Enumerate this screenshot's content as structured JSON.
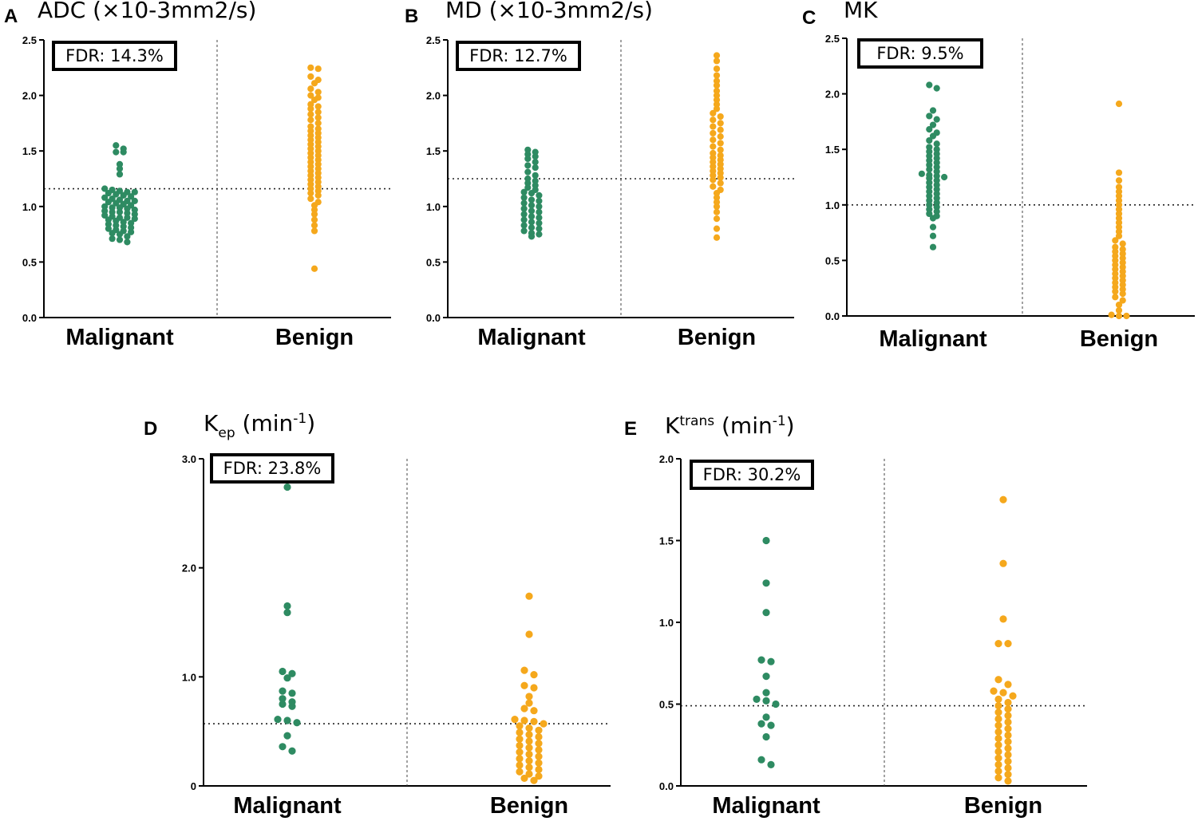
{
  "colors": {
    "malignant": "#2e8b62",
    "benign": "#f5a81c"
  },
  "chart_data": [
    {
      "type": "scatter",
      "letter": "A",
      "title": "ADC (×10-3mm2/s)",
      "fdr": "FDR: 14.3%",
      "categories": [
        "Malignant",
        "Benign"
      ],
      "ylim": [
        0,
        2.5
      ],
      "ytick_labels": [
        "0.0",
        "0.5",
        "1.0",
        "1.5",
        "2.0",
        "2.5"
      ],
      "cutoff": 1.16,
      "series": [
        {
          "name": "Malignant",
          "values": [
            1.55,
            1.52,
            1.49,
            1.49,
            1.38,
            1.34,
            1.29,
            1.16,
            1.15,
            1.14,
            1.13,
            1.13,
            1.12,
            1.11,
            1.1,
            1.09,
            1.08,
            1.07,
            1.06,
            1.05,
            1.05,
            1.04,
            1.03,
            1.02,
            1.01,
            1.0,
            0.99,
            0.99,
            0.98,
            0.97,
            0.96,
            0.95,
            0.95,
            0.94,
            0.93,
            0.92,
            0.91,
            0.9,
            0.9,
            0.89,
            0.88,
            0.87,
            0.86,
            0.85,
            0.84,
            0.83,
            0.82,
            0.81,
            0.8,
            0.79,
            0.78,
            0.77,
            0.76,
            0.75,
            0.73,
            0.71,
            0.7,
            0.68
          ]
        },
        {
          "name": "Benign",
          "values": [
            2.25,
            2.24,
            2.17,
            2.14,
            2.11,
            2.06,
            2.03,
            2.0,
            1.98,
            1.96,
            1.92,
            1.9,
            1.88,
            1.85,
            1.83,
            1.8,
            1.78,
            1.75,
            1.72,
            1.7,
            1.68,
            1.66,
            1.64,
            1.62,
            1.6,
            1.58,
            1.56,
            1.54,
            1.52,
            1.5,
            1.48,
            1.46,
            1.44,
            1.42,
            1.4,
            1.38,
            1.36,
            1.34,
            1.32,
            1.3,
            1.28,
            1.26,
            1.24,
            1.22,
            1.2,
            1.18,
            1.16,
            1.14,
            1.12,
            1.1,
            1.07,
            1.04,
            1.01,
            0.97,
            0.93,
            0.88,
            0.83,
            0.78,
            0.44
          ]
        }
      ]
    },
    {
      "type": "scatter",
      "letter": "B",
      "title": "MD (×10-3mm2/s)",
      "fdr": "FDR: 12.7%",
      "categories": [
        "Malignant",
        "Benign"
      ],
      "ylim": [
        0,
        2.5
      ],
      "ytick_labels": [
        "0.0",
        "0.5",
        "1.0",
        "1.5",
        "2.0",
        "2.5"
      ],
      "cutoff": 1.25,
      "series": [
        {
          "name": "Malignant",
          "values": [
            1.51,
            1.49,
            1.47,
            1.45,
            1.43,
            1.4,
            1.37,
            1.35,
            1.31,
            1.28,
            1.25,
            1.23,
            1.21,
            1.19,
            1.17,
            1.15,
            1.13,
            1.12,
            1.1,
            1.08,
            1.06,
            1.05,
            1.03,
            1.01,
            1.0,
            0.98,
            0.96,
            0.95,
            0.93,
            0.91,
            0.9,
            0.88,
            0.86,
            0.85,
            0.83,
            0.81,
            0.8,
            0.78,
            0.76,
            0.75,
            0.73
          ]
        },
        {
          "name": "Benign",
          "values": [
            2.36,
            2.31,
            2.24,
            2.18,
            2.13,
            2.09,
            2.04,
            2.0,
            1.96,
            1.92,
            1.88,
            1.84,
            1.81,
            1.78,
            1.75,
            1.72,
            1.69,
            1.66,
            1.63,
            1.6,
            1.57,
            1.54,
            1.51,
            1.48,
            1.46,
            1.44,
            1.42,
            1.4,
            1.38,
            1.36,
            1.34,
            1.32,
            1.3,
            1.28,
            1.26,
            1.24,
            1.21,
            1.18,
            1.15,
            1.12,
            1.08,
            1.04,
            1.0,
            0.95,
            0.89,
            0.8,
            0.72
          ]
        }
      ]
    },
    {
      "type": "scatter",
      "letter": "C",
      "title": "MK",
      "fdr": "FDR: 9.5%",
      "categories": [
        "Malignant",
        "Benign"
      ],
      "ylim": [
        0,
        2.5
      ],
      "ytick_labels": [
        "0.0",
        "0.5",
        "1.0",
        "1.5",
        "2.0",
        "2.5"
      ],
      "cutoff": 1.0,
      "series": [
        {
          "name": "Malignant",
          "values": [
            2.08,
            2.05,
            1.85,
            1.8,
            1.77,
            1.72,
            1.68,
            1.65,
            1.62,
            1.58,
            1.55,
            1.52,
            1.5,
            1.48,
            1.46,
            1.44,
            1.42,
            1.4,
            1.38,
            1.36,
            1.34,
            1.32,
            1.3,
            1.28,
            1.27,
            1.26,
            1.25,
            1.24,
            1.22,
            1.2,
            1.18,
            1.16,
            1.14,
            1.12,
            1.1,
            1.08,
            1.06,
            1.04,
            1.02,
            1.0,
            0.98,
            0.96,
            0.94,
            0.92,
            0.9,
            0.88,
            0.8,
            0.72,
            0.62
          ]
        },
        {
          "name": "Benign",
          "values": [
            1.91,
            1.29,
            1.22,
            1.16,
            1.12,
            1.08,
            1.04,
            1.0,
            0.96,
            0.92,
            0.88,
            0.84,
            0.8,
            0.76,
            0.72,
            0.68,
            0.65,
            0.62,
            0.6,
            0.58,
            0.56,
            0.54,
            0.52,
            0.5,
            0.48,
            0.46,
            0.44,
            0.42,
            0.4,
            0.38,
            0.36,
            0.34,
            0.32,
            0.3,
            0.28,
            0.26,
            0.24,
            0.22,
            0.2,
            0.17,
            0.14,
            0.1,
            0.05,
            0.01,
            0.0,
            0.0
          ]
        }
      ]
    },
    {
      "type": "scatter",
      "letter": "D",
      "title": "K",
      "title_sub": "ep",
      "title_tail": " (min",
      "title_sup": "-1",
      "title_close": ")",
      "fdr": "FDR: 23.8%",
      "categories": [
        "Malignant",
        "Benign"
      ],
      "ylim": [
        0,
        3.0
      ],
      "ytick_labels": [
        "0",
        "1.0",
        "2.0",
        "3.0"
      ],
      "ytick_values": [
        0,
        1,
        2,
        3
      ],
      "cutoff": 0.57,
      "series": [
        {
          "name": "Malignant",
          "values": [
            2.74,
            1.65,
            1.59,
            1.05,
            1.03,
            0.99,
            0.87,
            0.85,
            0.8,
            0.77,
            0.75,
            0.73,
            0.61,
            0.6,
            0.58,
            0.46,
            0.36,
            0.32
          ]
        },
        {
          "name": "Benign",
          "values": [
            1.74,
            1.39,
            1.06,
            1.02,
            0.92,
            0.9,
            0.82,
            0.76,
            0.71,
            0.69,
            0.61,
            0.6,
            0.59,
            0.57,
            0.55,
            0.53,
            0.51,
            0.49,
            0.47,
            0.45,
            0.43,
            0.41,
            0.39,
            0.37,
            0.35,
            0.33,
            0.31,
            0.29,
            0.27,
            0.25,
            0.23,
            0.21,
            0.19,
            0.17,
            0.15,
            0.13,
            0.11,
            0.09,
            0.07,
            0.05
          ]
        }
      ]
    },
    {
      "type": "scatter",
      "letter": "E",
      "title": "K",
      "title_supword": "trans",
      "title_tail": " (min",
      "title_sup": "-1",
      "title_close": ")",
      "fdr": "FDR: 30.2%",
      "categories": [
        "Malignant",
        "Benign"
      ],
      "ylim": [
        0,
        2.0
      ],
      "ytick_labels": [
        "0.0",
        "0.5",
        "1.0",
        "1.5",
        "2.0"
      ],
      "cutoff": 0.49,
      "series": [
        {
          "name": "Malignant",
          "values": [
            1.5,
            1.24,
            1.06,
            0.77,
            0.76,
            0.67,
            0.57,
            0.53,
            0.52,
            0.5,
            0.42,
            0.38,
            0.37,
            0.3,
            0.16,
            0.13
          ]
        },
        {
          "name": "Benign",
          "values": [
            1.75,
            1.36,
            1.02,
            0.87,
            0.87,
            0.65,
            0.62,
            0.58,
            0.57,
            0.55,
            0.53,
            0.51,
            0.49,
            0.47,
            0.45,
            0.43,
            0.41,
            0.39,
            0.37,
            0.35,
            0.33,
            0.31,
            0.29,
            0.27,
            0.25,
            0.23,
            0.21,
            0.19,
            0.17,
            0.15,
            0.13,
            0.11,
            0.09,
            0.07,
            0.05,
            0.03
          ]
        }
      ]
    }
  ]
}
